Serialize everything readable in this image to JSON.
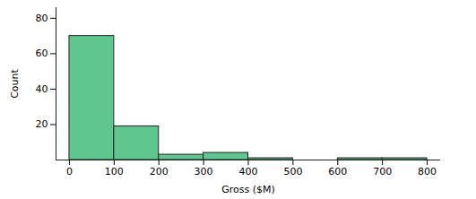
{
  "chart_data": {
    "type": "histogram",
    "x_label": "Gross ($M)",
    "y_label": "Count",
    "bins": [
      0,
      100,
      200,
      300,
      400,
      500,
      600,
      700,
      800
    ],
    "values": [
      70,
      19,
      3,
      4,
      1,
      0,
      1,
      1
    ],
    "color": "#5fc68f",
    "xlim": [
      -30,
      830
    ],
    "xticks": [
      0,
      100,
      200,
      300,
      400,
      500,
      600,
      700,
      800
    ],
    "ylim": [
      0,
      86
    ],
    "yticks": [
      20,
      40,
      60,
      80
    ],
    "grid": false
  }
}
